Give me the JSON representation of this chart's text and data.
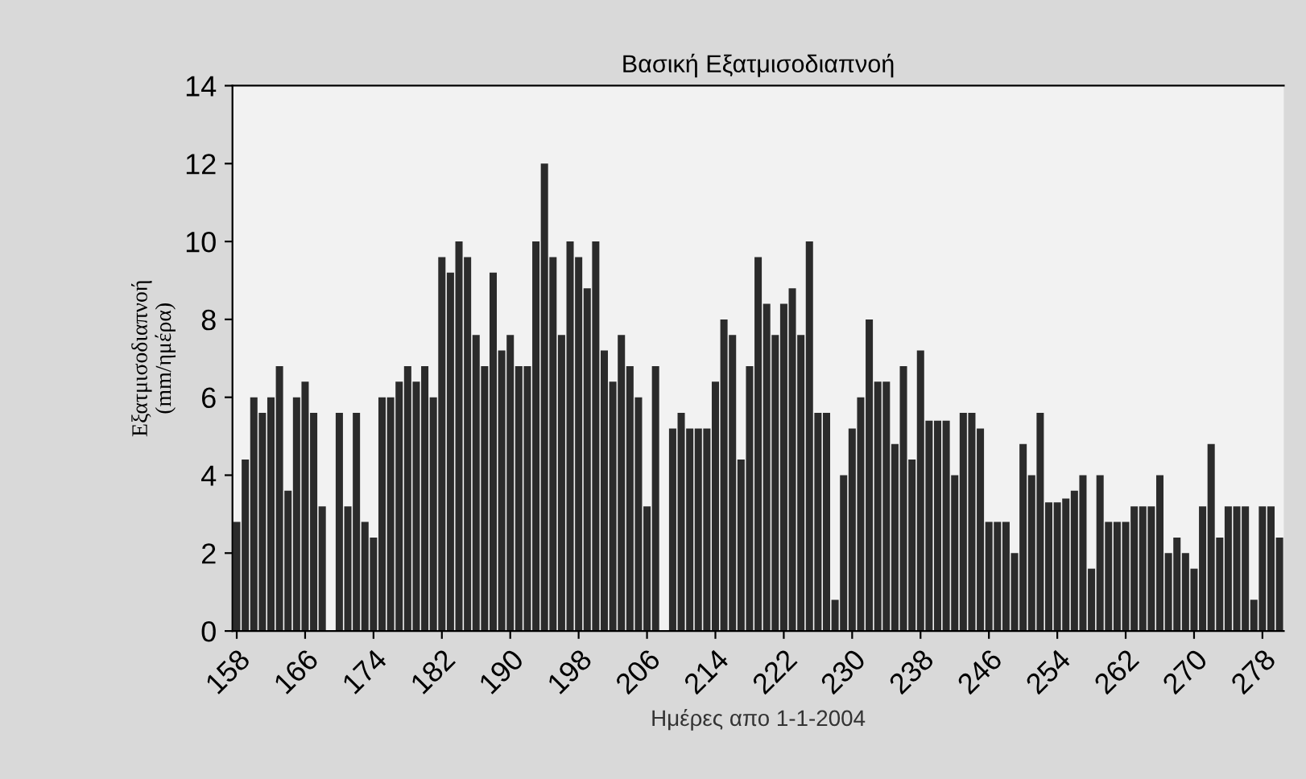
{
  "chart_data": {
    "type": "bar",
    "title": "Βασική Εξατμισοδιαπνοή",
    "xlabel": "Ημέρες απο 1-1-2004",
    "ylabel": "Εξατμισοδιαπνοή\n(mm/ημέρα)",
    "categories": [
      "158",
      null,
      null,
      null,
      null,
      null,
      null,
      null,
      "166",
      null,
      null,
      null,
      null,
      null,
      null,
      null,
      "174",
      null,
      null,
      null,
      null,
      null,
      null,
      null,
      "182",
      null,
      null,
      null,
      null,
      null,
      null,
      null,
      "190",
      null,
      null,
      null,
      null,
      null,
      null,
      null,
      "198",
      null,
      null,
      null,
      null,
      null,
      null,
      null,
      "206",
      null,
      null,
      null,
      null,
      null,
      null,
      null,
      "214",
      null,
      null,
      null,
      null,
      null,
      null,
      null,
      "222",
      null,
      null,
      null,
      null,
      null,
      null,
      null,
      "230",
      null,
      null,
      null,
      null,
      null,
      null,
      null,
      "238",
      null,
      null,
      null,
      null,
      null,
      null,
      null,
      "246",
      null,
      null,
      null,
      null,
      null,
      null,
      null,
      "254",
      null,
      null,
      null,
      null,
      null,
      null,
      null,
      "262",
      null,
      null,
      null,
      null,
      null,
      null,
      null,
      "270",
      null,
      null,
      null,
      null,
      null,
      null,
      null,
      "278",
      null,
      null
    ],
    "values": [
      2.8,
      4.4,
      6.0,
      5.6,
      6.0,
      6.8,
      3.6,
      6.0,
      6.4,
      5.6,
      3.2,
      null,
      5.6,
      3.2,
      5.6,
      2.8,
      2.4,
      6.0,
      6.0,
      6.4,
      6.8,
      6.4,
      6.8,
      6.0,
      9.6,
      9.2,
      10.0,
      9.6,
      7.6,
      6.8,
      9.2,
      7.2,
      7.6,
      6.8,
      6.8,
      10.0,
      12.0,
      9.6,
      7.6,
      10.0,
      9.6,
      8.8,
      10.0,
      7.2,
      6.4,
      7.6,
      6.8,
      6.0,
      3.2,
      6.8,
      null,
      5.2,
      5.6,
      5.2,
      5.2,
      5.2,
      6.4,
      8.0,
      7.6,
      4.4,
      6.8,
      9.6,
      8.4,
      7.6,
      8.4,
      8.8,
      7.6,
      10.0,
      5.6,
      5.6,
      0.8,
      4.0,
      5.2,
      6.0,
      8.0,
      6.4,
      6.4,
      4.8,
      6.8,
      4.4,
      7.2,
      5.4,
      5.4,
      5.4,
      4.0,
      5.6,
      5.6,
      5.2,
      2.8,
      2.8,
      2.8,
      2.0,
      4.8,
      4.0,
      5.6,
      3.3,
      3.3,
      3.4,
      3.6,
      4.0,
      1.6,
      4.0,
      2.8,
      2.8,
      2.8,
      3.2,
      3.2,
      3.2,
      4.0,
      2.0,
      2.4,
      2.0,
      1.6,
      3.2,
      4.8,
      2.4,
      3.2,
      3.2,
      3.2,
      0.8,
      3.2,
      3.2,
      2.4
    ],
    "color": "#2b2b2b",
    "ylim": [
      0,
      14
    ],
    "yticks": [
      0,
      2,
      4,
      6,
      8,
      10,
      12,
      14
    ],
    "grid": false,
    "legend": false
  }
}
